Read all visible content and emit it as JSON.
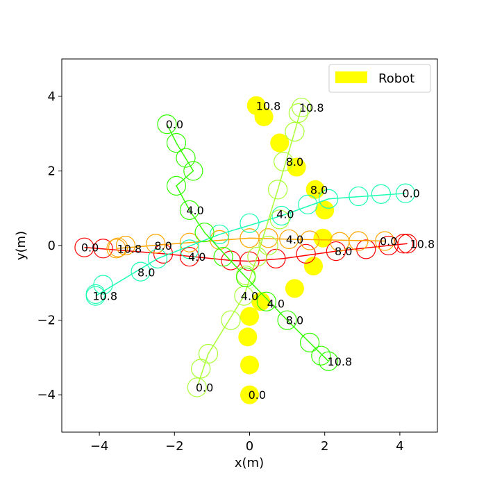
{
  "chart_data": {
    "type": "scatter",
    "xlabel": "x(m)",
    "ylabel": "y(m)",
    "xlim": [
      -5,
      5
    ],
    "ylim": [
      -5,
      5
    ],
    "xticks": [
      -4,
      -2,
      0,
      2,
      4
    ],
    "yticks": [
      -4,
      -2,
      0,
      2,
      4
    ],
    "xtick_labels": [
      "−4",
      "−2",
      "0",
      "2",
      "4"
    ],
    "ytick_labels": [
      "−4",
      "−2",
      "0",
      "2",
      "4"
    ],
    "grid": false,
    "legend": {
      "position": "top-right",
      "entries": [
        {
          "label": "Robot",
          "color": "#ffff00"
        }
      ]
    },
    "agent_radius": 0.25,
    "robot": {
      "name": "Robot",
      "color": "#ffff00",
      "positions": [
        [
          0.0,
          -4.0
        ],
        [
          0.0,
          -3.2
        ],
        [
          -0.05,
          -2.45
        ],
        [
          0.0,
          -1.9
        ],
        [
          0.3,
          -1.5
        ],
        [
          1.2,
          -1.15
        ],
        [
          1.7,
          -0.55
        ],
        [
          1.95,
          0.2
        ],
        [
          2.0,
          0.95
        ],
        [
          1.75,
          1.5
        ],
        [
          1.25,
          2.1
        ],
        [
          0.8,
          2.75
        ],
        [
          0.38,
          3.45
        ],
        [
          0.18,
          3.75
        ]
      ],
      "time_labels": [
        {
          "t": "0.0",
          "x": 0.2,
          "y": -4.0
        },
        {
          "t": "4.0",
          "x": 0.7,
          "y": -1.55
        },
        {
          "t": "8.0",
          "x": 1.85,
          "y": 1.5
        },
        {
          "t": "10.8",
          "x": 0.5,
          "y": 3.75
        }
      ]
    },
    "humans": [
      {
        "color": "#ff0000",
        "circles": [
          [
            -4.4,
            -0.05
          ],
          [
            -3.9,
            -0.08
          ],
          [
            -2.3,
            -0.22
          ],
          [
            -1.6,
            -0.3
          ],
          [
            -0.5,
            -0.4
          ],
          [
            0.0,
            -0.42
          ],
          [
            0.7,
            -0.35
          ],
          [
            1.5,
            -0.22
          ],
          [
            2.3,
            -0.15
          ],
          [
            3.1,
            -0.1
          ],
          [
            3.7,
            0.0
          ],
          [
            4.1,
            0.05
          ],
          [
            4.2,
            0.05
          ]
        ],
        "path": [
          [
            -4.4,
            -0.05
          ],
          [
            -2.3,
            -0.22
          ],
          [
            -0.5,
            -0.4
          ],
          [
            0.0,
            -0.42
          ],
          [
            0.9,
            -0.35
          ],
          [
            2.3,
            -0.15
          ],
          [
            3.7,
            0.0
          ],
          [
            4.2,
            0.05
          ]
        ],
        "time_labels": [
          {
            "t": "0.0",
            "x": -4.25,
            "y": -0.05
          },
          {
            "t": "4.0",
            "x": -1.4,
            "y": -0.3
          },
          {
            "t": "8.0",
            "x": 2.5,
            "y": -0.15
          },
          {
            "t": "10.8",
            "x": 4.6,
            "y": 0.05
          }
        ]
      },
      {
        "color": "#ffa500",
        "circles": [
          [
            3.6,
            0.12
          ],
          [
            2.9,
            0.12
          ],
          [
            2.4,
            0.1
          ],
          [
            1.6,
            0.14
          ],
          [
            1.05,
            0.17
          ],
          [
            0.5,
            0.2
          ],
          [
            0.0,
            0.2
          ],
          [
            -0.8,
            0.15
          ],
          [
            -1.6,
            0.08
          ],
          [
            -2.5,
            0.05
          ],
          [
            -3.3,
            0.0
          ],
          [
            -3.5,
            -0.05
          ],
          [
            -3.55,
            -0.08
          ]
        ],
        "path": [
          [
            3.6,
            0.12
          ],
          [
            1.05,
            0.17
          ],
          [
            0.0,
            0.2
          ],
          [
            -1.6,
            0.08
          ],
          [
            -3.55,
            -0.08
          ]
        ],
        "time_labels": [
          {
            "t": "0.0",
            "x": 3.7,
            "y": 0.12
          },
          {
            "t": "4.0",
            "x": 1.2,
            "y": 0.17
          },
          {
            "t": "8.0",
            "x": -2.3,
            "y": 0.0
          },
          {
            "t": "10.8",
            "x": -3.2,
            "y": -0.08
          }
        ]
      },
      {
        "color": "#1affb0",
        "circles": [
          [
            4.15,
            1.4
          ],
          [
            3.5,
            1.38
          ],
          [
            2.9,
            1.32
          ],
          [
            2.1,
            1.25
          ],
          [
            1.55,
            1.1
          ],
          [
            0.85,
            0.8
          ],
          [
            0.0,
            0.6
          ],
          [
            -0.8,
            0.3
          ],
          [
            -1.6,
            -0.1
          ],
          [
            -2.45,
            -0.35
          ],
          [
            -2.9,
            -0.7
          ],
          [
            -3.9,
            -1.05
          ],
          [
            -4.1,
            -1.3
          ],
          [
            -4.1,
            -1.35
          ]
        ],
        "path": [
          [
            4.15,
            1.4
          ],
          [
            2.1,
            1.25
          ],
          [
            0.85,
            0.8
          ],
          [
            -0.8,
            0.3
          ],
          [
            -2.45,
            -0.35
          ],
          [
            -4.1,
            -1.35
          ]
        ],
        "time_labels": [
          {
            "t": "0.0",
            "x": 4.3,
            "y": 1.4
          },
          {
            "t": "4.0",
            "x": 0.95,
            "y": 0.85
          },
          {
            "t": "8.0",
            "x": -2.75,
            "y": -0.72
          },
          {
            "t": "10.8",
            "x": -3.85,
            "y": -1.35
          }
        ]
      },
      {
        "color": "#aaff33",
        "circles": [
          [
            -1.4,
            -3.8
          ],
          [
            -1.3,
            -3.3
          ],
          [
            -1.1,
            -2.9
          ],
          [
            -0.5,
            -2.0
          ],
          [
            -0.15,
            -1.35
          ],
          [
            -0.1,
            -0.8
          ],
          [
            0.2,
            -0.3
          ],
          [
            0.5,
            0.0
          ],
          [
            0.8,
            0.7
          ],
          [
            0.75,
            1.5
          ],
          [
            0.9,
            2.25
          ],
          [
            1.2,
            3.05
          ],
          [
            1.3,
            3.55
          ],
          [
            1.38,
            3.7
          ]
        ],
        "path": [
          [
            -1.4,
            -3.8
          ],
          [
            -1.1,
            -2.9
          ],
          [
            -0.15,
            -1.35
          ],
          [
            0.2,
            -0.3
          ],
          [
            0.75,
            1.5
          ],
          [
            1.2,
            3.05
          ],
          [
            1.38,
            3.7
          ]
        ],
        "time_labels": [
          {
            "t": "0.0",
            "x": -1.2,
            "y": -3.8
          },
          {
            "t": "4.0",
            "x": 0.0,
            "y": -1.35
          },
          {
            "t": "8.0",
            "x": 1.2,
            "y": 2.25
          },
          {
            "t": "10.8",
            "x": 1.65,
            "y": 3.7
          }
        ]
      },
      {
        "color": "#33ff00",
        "circles": [
          [
            -2.2,
            3.25
          ],
          [
            -1.95,
            2.75
          ],
          [
            -1.7,
            2.35
          ],
          [
            -1.5,
            2.0
          ],
          [
            -1.95,
            1.6
          ],
          [
            -1.6,
            0.95
          ],
          [
            -1.2,
            0.35
          ],
          [
            -0.7,
            -0.3
          ],
          [
            -0.1,
            -0.85
          ],
          [
            0.45,
            -1.5
          ],
          [
            1.0,
            -2.0
          ],
          [
            1.6,
            -2.6
          ],
          [
            1.9,
            -2.95
          ],
          [
            2.1,
            -3.1
          ]
        ],
        "path": [
          [
            -2.2,
            3.25
          ],
          [
            -1.95,
            2.75
          ],
          [
            -1.5,
            2.0
          ],
          [
            -1.95,
            1.6
          ],
          [
            -1.6,
            0.95
          ],
          [
            -1.2,
            0.35
          ],
          [
            -0.1,
            -0.85
          ],
          [
            1.0,
            -2.0
          ],
          [
            2.1,
            -3.1
          ]
        ],
        "time_labels": [
          {
            "t": "0.0",
            "x": -2.0,
            "y": 3.25
          },
          {
            "t": "4.0",
            "x": -1.45,
            "y": 0.95
          },
          {
            "t": "8.0",
            "x": 1.2,
            "y": -2.0
          },
          {
            "t": "10.8",
            "x": 2.4,
            "y": -3.1
          }
        ]
      }
    ]
  }
}
